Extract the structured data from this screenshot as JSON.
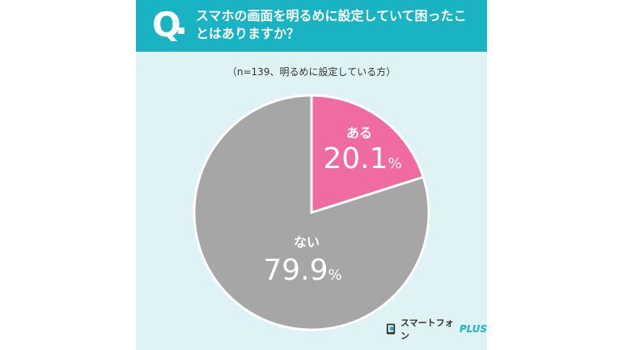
{
  "question": {
    "mark": "Q",
    "text": "スマホの画面を明るめに設定していて困ったことはありますか？"
  },
  "note": "（n=139、明るめに設定している方）",
  "chart_data": {
    "type": "pie",
    "slices": [
      {
        "label": "ある",
        "value": 20.1,
        "value_text": "20.1",
        "unit": "%",
        "color": "#f06b9f"
      },
      {
        "label": "ない",
        "value": 79.9,
        "value_text": "79.9",
        "unit": "%",
        "color": "#a6a6a6"
      }
    ]
  },
  "brand": {
    "name": "スマートフォン",
    "suffix": "PLUS",
    "accent_color": "#19b3c3"
  }
}
